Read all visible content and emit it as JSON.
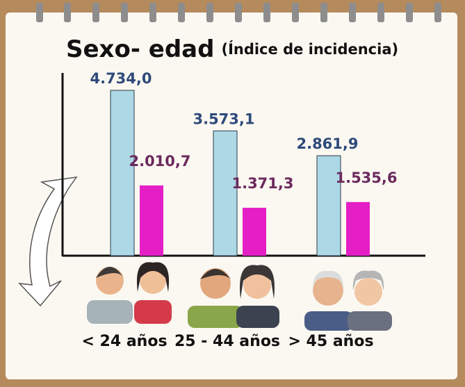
{
  "chart_data": {
    "type": "bar",
    "title": "Sexo- edad",
    "subtitle": "(Índice de incidencia)",
    "categories": [
      "< 24 años",
      "25 - 44 años",
      "> 45 años"
    ],
    "series": [
      {
        "color": "#add8e6",
        "label_color": "#2e4a7a",
        "values": [
          4734.0,
          3573.1,
          2861.9
        ],
        "value_labels": [
          "4.734,0",
          "3.573,1",
          "2.861,9"
        ]
      },
      {
        "color": "#e41fc6",
        "label_color": "#6b2a5e",
        "values": [
          2010.7,
          1371.3,
          1535.6
        ],
        "value_labels": [
          "2.010,7",
          "1.371,3",
          "1.535,6"
        ]
      }
    ]
  }
}
